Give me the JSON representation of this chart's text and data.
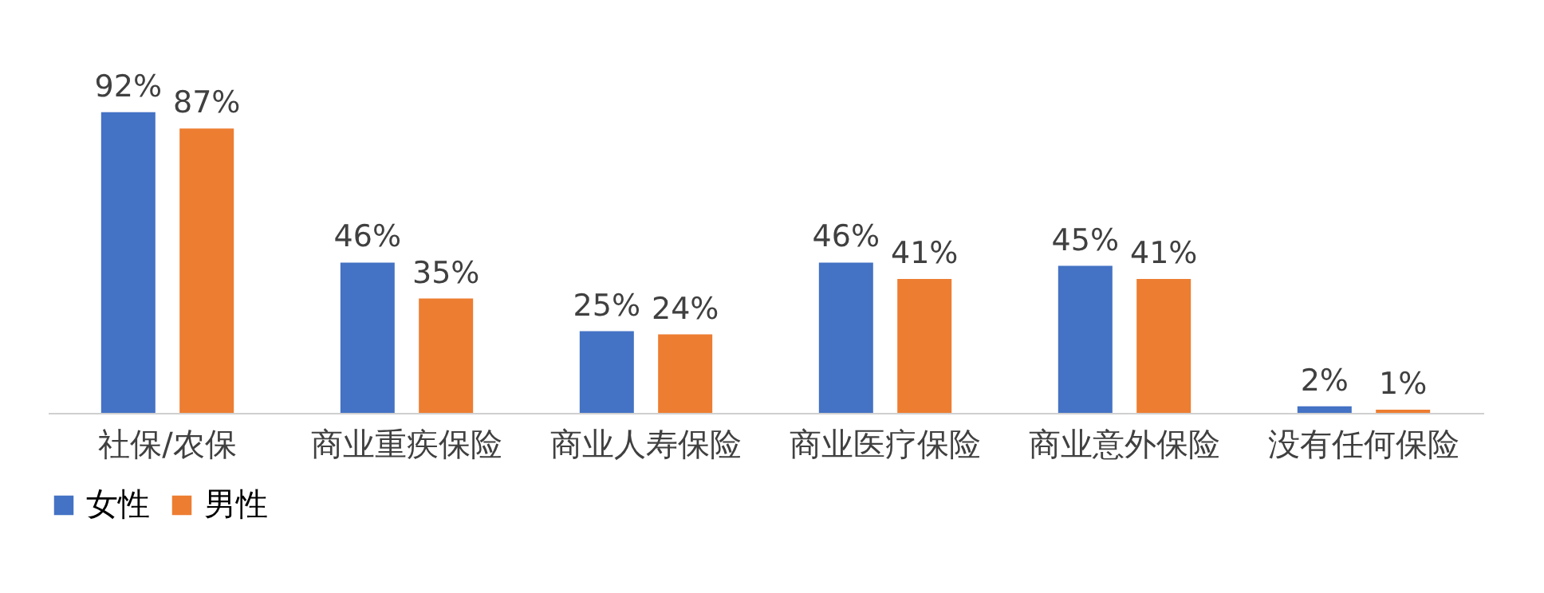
{
  "chart_data": {
    "type": "bar",
    "categories": [
      "社保/农保",
      "商业重疾保险",
      "商业人寿保险",
      "商业医疗保险",
      "商业意外保险",
      "没有任何保险"
    ],
    "series": [
      {
        "name": "女性",
        "color": "#4472c4",
        "values": [
          92,
          46,
          25,
          46,
          45,
          2
        ],
        "value_labels": [
          "92%",
          "46%",
          "25%",
          "46%",
          "45%",
          "2%"
        ]
      },
      {
        "name": "男性",
        "color": "#ed7d31",
        "values": [
          87,
          35,
          24,
          41,
          41,
          1
        ],
        "value_labels": [
          "87%",
          "35%",
          "24%",
          "41%",
          "41%",
          "1%"
        ]
      }
    ],
    "legend": "bottom",
    "grid": false
  }
}
